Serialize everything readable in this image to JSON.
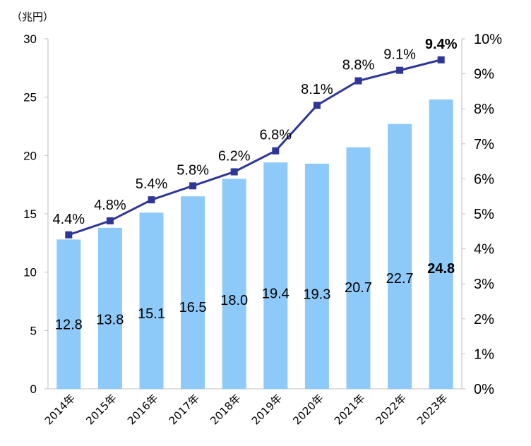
{
  "chart_data": {
    "type": "bar",
    "unit_label": "（兆円）",
    "categories": [
      "2014年",
      "2015年",
      "2016年",
      "2017年",
      "2018年",
      "2019年",
      "2020年",
      "2021年",
      "2022年",
      "2023年"
    ],
    "series": [
      {
        "type": "bar",
        "axis": "left",
        "values": [
          12.8,
          13.8,
          15.1,
          16.5,
          18.0,
          19.4,
          19.3,
          20.7,
          22.7,
          24.8
        ],
        "labels": [
          "12.8",
          "13.8",
          "15.1",
          "16.5",
          "18.0",
          "19.4",
          "19.3",
          "20.7",
          "22.7",
          "24.8"
        ],
        "color": "#8ecaf9"
      },
      {
        "type": "line",
        "axis": "right",
        "values": [
          4.4,
          4.8,
          5.4,
          5.8,
          6.2,
          6.8,
          8.1,
          8.8,
          9.1,
          9.4
        ],
        "labels": [
          "4.4%",
          "4.8%",
          "5.4%",
          "5.8%",
          "6.2%",
          "6.8%",
          "8.1%",
          "8.8%",
          "9.1%",
          "9.4%"
        ],
        "color": "#2f3796"
      }
    ],
    "y_left": {
      "lim": [
        0,
        30
      ],
      "ticks": [
        "0",
        "5",
        "10",
        "15",
        "20",
        "25",
        "30"
      ]
    },
    "y_right": {
      "lim": [
        0,
        10
      ],
      "ticks": [
        "0%",
        "1%",
        "2%",
        "3%",
        "4%",
        "5%",
        "6%",
        "7%",
        "8%",
        "9%",
        "10%"
      ]
    },
    "highlight_color": "#ff0000",
    "grid": false,
    "legend": "none"
  }
}
